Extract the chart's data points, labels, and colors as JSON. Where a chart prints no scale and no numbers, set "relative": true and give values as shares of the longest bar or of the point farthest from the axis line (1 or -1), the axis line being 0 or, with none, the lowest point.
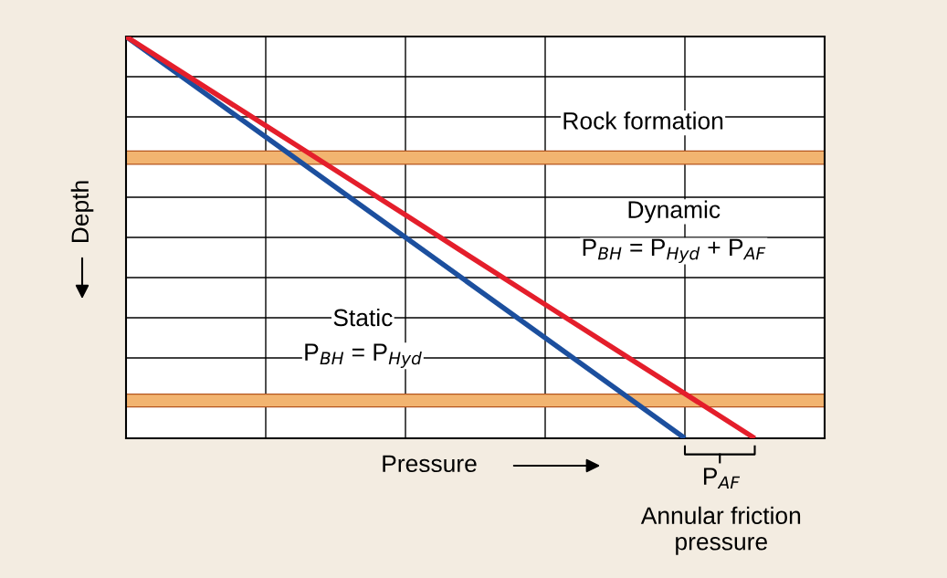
{
  "chart_data": {
    "type": "line",
    "relative": true,
    "xlabel": "Pressure",
    "ylabel": "Depth",
    "categories": [
      null,
      null,
      null,
      null,
      null,
      null,
      null,
      null,
      null,
      null,
      null
    ],
    "series": [
      {
        "color": "#1c4f9e",
        "values": [
          0,
          -0.125,
          -0.25,
          -0.375,
          -0.5,
          -0.625,
          -0.75,
          -0.875,
          -1,
          null,
          null
        ]
      },
      {
        "color": "#e41e2b",
        "values": [
          0,
          -0.111,
          -0.222,
          -0.333,
          -0.444,
          -0.556,
          -0.667,
          -0.778,
          -0.889,
          -1,
          null
        ]
      }
    ],
    "grid": true,
    "tick_labels": false,
    "line_style": "solid",
    "marker": "none",
    "bands": [
      {
        "axis": "y",
        "from": -0.285,
        "to": -0.318,
        "label": "Rock formation",
        "color": "#f2b470"
      },
      {
        "axis": "y",
        "from": -0.89,
        "to": -0.922,
        "color": "#f2b470"
      }
    ],
    "annotations": [
      "Dynamic",
      "P$_{BH}$ = P$_{Hyd}$ + P$_{AF}$",
      "Static",
      "P$_{BH}$ = P$_{Hyd}$",
      "P$_{AF}$",
      "Annular friction\npressure"
    ]
  }
}
